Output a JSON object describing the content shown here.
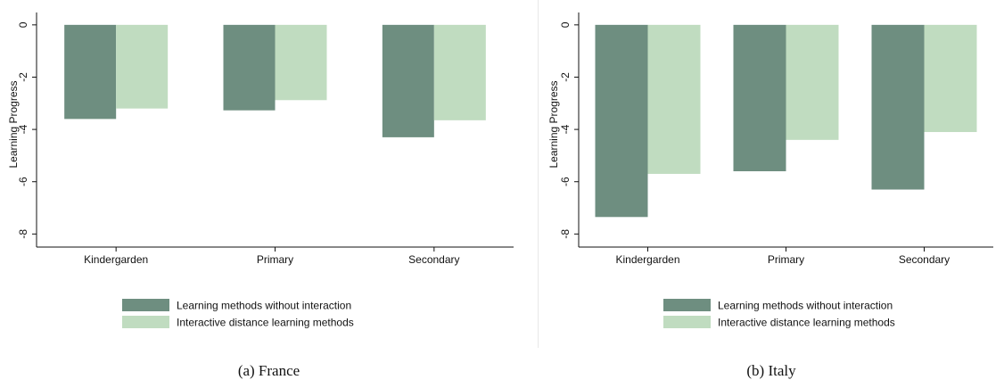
{
  "colors": {
    "without": "#6e8e80",
    "interactive": "#c0dcc0",
    "axis": "#111111"
  },
  "chart_data": [
    {
      "type": "bar",
      "caption": "(a) France",
      "ylabel": "Learning Progress",
      "ylim": [
        -8.5,
        0.2
      ],
      "yticks": [
        0,
        -2,
        -4,
        -6,
        -8
      ],
      "grid": false,
      "legend_position": "bottom",
      "categories": [
        "Kindergarden",
        "Primary",
        "Secondary"
      ],
      "series": [
        {
          "name": "Learning methods without interaction",
          "values": [
            -3.6,
            -3.27,
            -4.3
          ]
        },
        {
          "name": "Interactive distance learning methods",
          "values": [
            -3.2,
            -2.88,
            -3.65
          ]
        }
      ]
    },
    {
      "type": "bar",
      "caption": "(b) Italy",
      "ylabel": "Learning Progress",
      "ylim": [
        -8.5,
        0.2
      ],
      "yticks": [
        0,
        -2,
        -4,
        -6,
        -8
      ],
      "grid": false,
      "legend_position": "bottom",
      "categories": [
        "Kindergarden",
        "Primary",
        "Secondary"
      ],
      "series": [
        {
          "name": "Learning methods without interaction",
          "values": [
            -7.35,
            -5.6,
            -6.3
          ]
        },
        {
          "name": "Interactive distance learning methods",
          "values": [
            -5.7,
            -4.4,
            -4.1
          ]
        }
      ]
    }
  ]
}
